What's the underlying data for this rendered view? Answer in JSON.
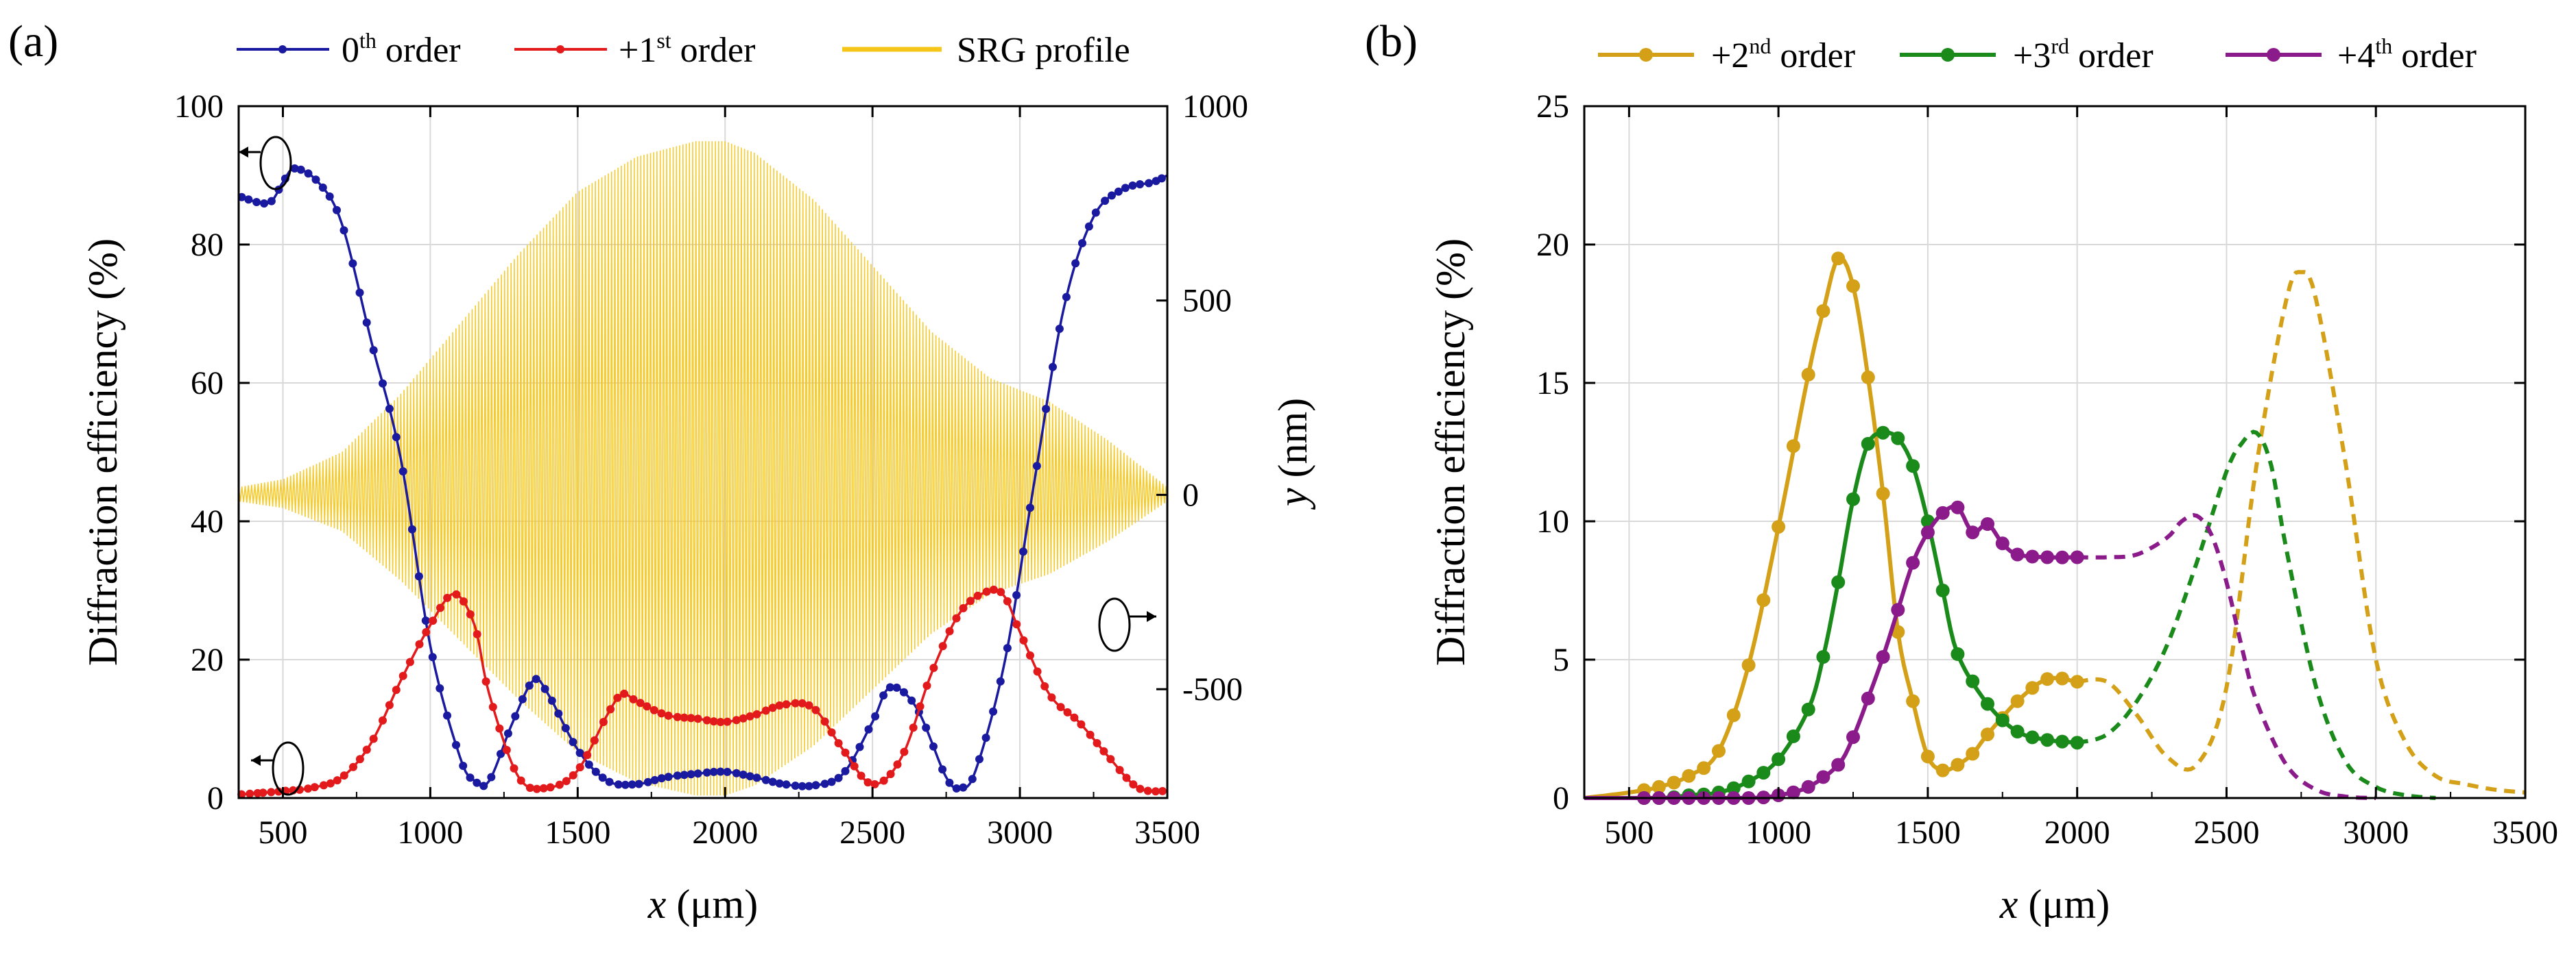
{
  "chart_data": [
    {
      "panel_label": "(a)",
      "type": "line",
      "xlabel_var": "x",
      "xlabel_unit": " (μm)",
      "ylabel": "Diffraction efficiency (%)",
      "y2label_var": "y",
      "y2label_unit": " (nm)",
      "xlim": [
        350,
        3500
      ],
      "ylim": [
        0,
        100
      ],
      "y2lim": [
        -780,
        1000
      ],
      "xticks": [
        500,
        1000,
        1500,
        2000,
        2500,
        3000,
        3500
      ],
      "yticks": [
        0,
        20,
        40,
        60,
        80,
        100
      ],
      "y2ticks": [
        -500,
        0,
        500,
        1000
      ],
      "y2ticklabels": [
        "-500",
        "0",
        "500",
        "1000"
      ],
      "grid": true,
      "series": [
        {
          "name": "0th order",
          "legend_base": "0",
          "legend_sup": "th",
          "legend_rest": " order",
          "color": "#1a1aa0",
          "x": [
            350,
            450,
            500,
            540,
            620,
            700,
            800,
            900,
            1000,
            1100,
            1150,
            1200,
            1280,
            1350,
            1400,
            1500,
            1600,
            1700,
            1800,
            1900,
            2000,
            2100,
            2200,
            2300,
            2400,
            2500,
            2560,
            2650,
            2750,
            2800,
            2850,
            2950,
            3050,
            3150,
            3250,
            3350,
            3450,
            3500
          ],
          "y": [
            87,
            86,
            89,
            91,
            89,
            83,
            66,
            49,
            22,
            6,
            2.5,
            2.5,
            11,
            17,
            15,
            7,
            2.5,
            2,
            3,
            3.5,
            3.8,
            3,
            2,
            1.8,
            3.5,
            11,
            16,
            13,
            3,
            1.5,
            4,
            20,
            46,
            71,
            84,
            88,
            89,
            90
          ]
        },
        {
          "name": "+1st order",
          "legend_base": "+1",
          "legend_sup": "st",
          "legend_rest": " order",
          "color": "#e31a1c",
          "x": [
            350,
            500,
            600,
            700,
            800,
            900,
            1000,
            1080,
            1150,
            1200,
            1300,
            1400,
            1500,
            1600,
            1650,
            1700,
            1800,
            1900,
            2000,
            2100,
            2200,
            2300,
            2400,
            2500,
            2600,
            2700,
            2800,
            2900,
            2950,
            3000,
            3100,
            3200,
            3300,
            3400,
            3500
          ],
          "y": [
            0.5,
            1,
            1.5,
            3,
            8,
            17,
            25,
            29.5,
            25,
            15,
            3,
            1.5,
            4,
            12,
            15,
            14,
            12,
            11.5,
            11,
            12,
            13.5,
            13,
            7,
            2,
            6,
            18,
            27,
            30,
            29,
            24,
            15,
            11,
            6,
            1.5,
            1
          ]
        },
        {
          "name": "SRG profile",
          "legend_base": "SRG profile",
          "legend_sup": "",
          "legend_rest": "",
          "color": "#f5c518",
          "axis": "y2",
          "envelope_x": [
            350,
            500,
            700,
            900,
            1100,
            1300,
            1500,
            1700,
            1900,
            2000,
            2100,
            2300,
            2500,
            2700,
            2900,
            3100,
            3300,
            3500
          ],
          "envelope_amp_nm": [
            20,
            40,
            110,
            260,
            440,
            620,
            780,
            870,
            910,
            910,
            880,
            760,
            590,
            420,
            300,
            240,
            140,
            20
          ],
          "center_nm": 0
        }
      ]
    },
    {
      "panel_label": "(b)",
      "type": "line",
      "xlabel_var": "x",
      "xlabel_unit": " (μm)",
      "ylabel": "Diffraction efficiency (%)",
      "xlim": [
        350,
        3500
      ],
      "ylim": [
        0,
        25
      ],
      "xticks": [
        500,
        1000,
        1500,
        2000,
        2500,
        3000,
        3500
      ],
      "yticks": [
        0,
        5,
        10,
        15,
        20,
        25
      ],
      "grid": true,
      "series": [
        {
          "name": "+2nd order",
          "legend_base": "+2",
          "legend_sup": "nd",
          "legend_rest": " order",
          "color": "#d4a017",
          "x": [
            350,
            500,
            600,
            700,
            800,
            900,
            1000,
            1100,
            1150,
            1200,
            1250,
            1300,
            1350,
            1400,
            1450,
            1500,
            1550,
            1600,
            1650,
            1700,
            1800,
            1900,
            2000
          ],
          "y": [
            0,
            0.2,
            0.4,
            0.8,
            1.7,
            4.8,
            9.8,
            15.3,
            17.6,
            19.5,
            18.5,
            15.2,
            11,
            6,
            3.5,
            1.5,
            1,
            1.2,
            1.6,
            2.3,
            3.5,
            4.3,
            4.2
          ],
          "dashed_x": [
            2000,
            2100,
            2200,
            2300,
            2400,
            2500,
            2600,
            2700,
            2750,
            2800,
            2900,
            3000,
            3100,
            3200,
            3300,
            3400,
            3500
          ],
          "dashed_y": [
            4.2,
            4.2,
            3,
            1.5,
            1.2,
            4,
            12,
            18,
            19,
            18,
            12,
            5,
            2,
            0.8,
            0.5,
            0.3,
            0.2
          ]
        },
        {
          "name": "+3rd order",
          "legend_base": "+3",
          "legend_sup": "rd",
          "legend_rest": " order",
          "color": "#1a8a1a",
          "x": [
            350,
            600,
            700,
            800,
            900,
            1000,
            1100,
            1150,
            1200,
            1250,
            1300,
            1350,
            1400,
            1450,
            1500,
            1550,
            1600,
            1700,
            1800,
            1900,
            2000
          ],
          "y": [
            0,
            0,
            0.1,
            0.2,
            0.6,
            1.4,
            3.2,
            5.1,
            7.8,
            10.8,
            12.8,
            13.2,
            13,
            12,
            10,
            7.5,
            5.2,
            3.4,
            2.4,
            2.1,
            2
          ],
          "dashed_x": [
            2000,
            2100,
            2200,
            2300,
            2400,
            2500,
            2550,
            2600,
            2650,
            2700,
            2800,
            2900,
            3000,
            3100,
            3200
          ],
          "dashed_y": [
            2,
            2.3,
            3.5,
            5.5,
            8.5,
            11.8,
            12.8,
            13.2,
            12,
            9,
            4,
            1.3,
            0.4,
            0.1,
            0
          ]
        },
        {
          "name": "+4th order",
          "legend_base": "+4",
          "legend_sup": "th",
          "legend_rest": " order",
          "color": "#8b1a8b",
          "x": [
            350,
            700,
            900,
            1000,
            1100,
            1200,
            1250,
            1300,
            1350,
            1400,
            1450,
            1500,
            1550,
            1600,
            1650,
            1700,
            1750,
            1800,
            1900,
            2000
          ],
          "y": [
            0,
            0,
            0,
            0.1,
            0.4,
            1.2,
            2.2,
            3.6,
            5.1,
            6.8,
            8.5,
            9.6,
            10.3,
            10.5,
            9.6,
            9.9,
            9.2,
            8.8,
            8.7,
            8.7
          ],
          "dashed_x": [
            2000,
            2100,
            2200,
            2300,
            2350,
            2400,
            2450,
            2500,
            2550,
            2600,
            2700,
            2800,
            2900,
            3000
          ],
          "dashed_y": [
            8.7,
            8.7,
            8.8,
            9.4,
            10,
            10.2,
            9.5,
            7.8,
            5.5,
            3.5,
            1.2,
            0.3,
            0.05,
            0
          ]
        }
      ]
    }
  ]
}
